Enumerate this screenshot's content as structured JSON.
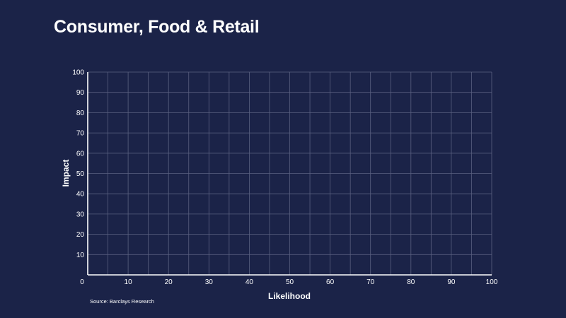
{
  "chart_data": {
    "type": "scatter",
    "title": "Consumer, Food & Retail",
    "xlabel": "Likelihood",
    "ylabel": "Impact",
    "xlim": [
      0,
      100
    ],
    "ylim": [
      0,
      100
    ],
    "x_ticks": [
      0,
      10,
      20,
      30,
      40,
      50,
      60,
      70,
      80,
      90,
      100
    ],
    "y_ticks": [
      10,
      20,
      30,
      40,
      50,
      60,
      70,
      80,
      90,
      100
    ],
    "grid": true,
    "series": [],
    "source": "Source: Barclays Research"
  },
  "colors": {
    "background": "#1b2348",
    "grid": "#5a6080",
    "axis": "#ffffff",
    "text": "#ffffff"
  }
}
